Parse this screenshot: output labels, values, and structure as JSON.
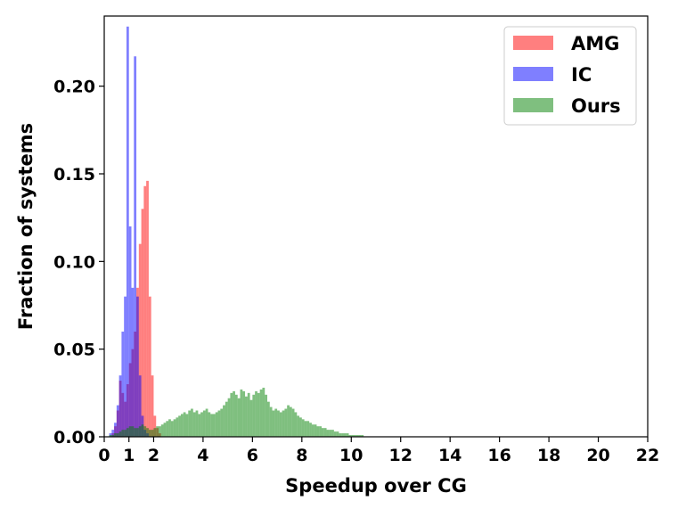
{
  "chart_data": {
    "type": "histogram",
    "title": "",
    "xlabel": "Speedup over CG",
    "ylabel": "Fraction of systems",
    "xlim": [
      0,
      22
    ],
    "ylim": [
      0,
      0.24
    ],
    "xticks": [
      "0",
      "1",
      "2",
      "4",
      "6",
      "8",
      "10",
      "12",
      "14",
      "16",
      "18",
      "20",
      "22"
    ],
    "yticks": [
      "0.00",
      "0.05",
      "0.10",
      "0.15",
      "0.20"
    ],
    "highlight_tick": {
      "label": "1",
      "color": "#ff0000"
    },
    "bin_width": 0.1,
    "legend": {
      "position": "upper right",
      "entries": [
        "AMG",
        "IC",
        "Ours"
      ]
    },
    "series": [
      {
        "name": "AMG",
        "color": "#ff0000",
        "alpha": 0.5,
        "start": 0.3,
        "values": [
          0.002,
          0.006,
          0.015,
          0.032,
          0.025,
          0.02,
          0.03,
          0.042,
          0.05,
          0.06,
          0.085,
          0.11,
          0.13,
          0.143,
          0.146,
          0.08,
          0.035,
          0.012,
          0.005,
          0.002
        ]
      },
      {
        "name": "IC",
        "color": "#0000ff",
        "alpha": 0.5,
        "start": 0.2,
        "values": [
          0.002,
          0.004,
          0.008,
          0.018,
          0.035,
          0.06,
          0.08,
          0.234,
          0.12,
          0.085,
          0.217,
          0.08,
          0.035,
          0.012,
          0.004,
          0.002
        ]
      },
      {
        "name": "Ours",
        "color": "#008000",
        "alpha": 0.5,
        "start": 0.2,
        "values": [
          0.001,
          0.001,
          0.002,
          0.002,
          0.003,
          0.004,
          0.004,
          0.005,
          0.006,
          0.006,
          0.005,
          0.005,
          0.006,
          0.007,
          0.006,
          0.005,
          0.004,
          0.004,
          0.005,
          0.006,
          0.006,
          0.007,
          0.008,
          0.009,
          0.01,
          0.009,
          0.01,
          0.011,
          0.012,
          0.013,
          0.014,
          0.013,
          0.015,
          0.016,
          0.014,
          0.015,
          0.013,
          0.014,
          0.015,
          0.016,
          0.014,
          0.013,
          0.013,
          0.014,
          0.015,
          0.016,
          0.018,
          0.02,
          0.022,
          0.025,
          0.026,
          0.024,
          0.022,
          0.027,
          0.026,
          0.023,
          0.025,
          0.021,
          0.024,
          0.026,
          0.025,
          0.027,
          0.028,
          0.024,
          0.02,
          0.017,
          0.015,
          0.016,
          0.015,
          0.014,
          0.015,
          0.016,
          0.018,
          0.017,
          0.016,
          0.014,
          0.012,
          0.011,
          0.01,
          0.009,
          0.009,
          0.008,
          0.007,
          0.007,
          0.006,
          0.006,
          0.005,
          0.005,
          0.004,
          0.004,
          0.004,
          0.003,
          0.003,
          0.002,
          0.002,
          0.002,
          0.002,
          0.001,
          0.001,
          0.001,
          0.001,
          0.001,
          0.001
        ]
      }
    ]
  }
}
